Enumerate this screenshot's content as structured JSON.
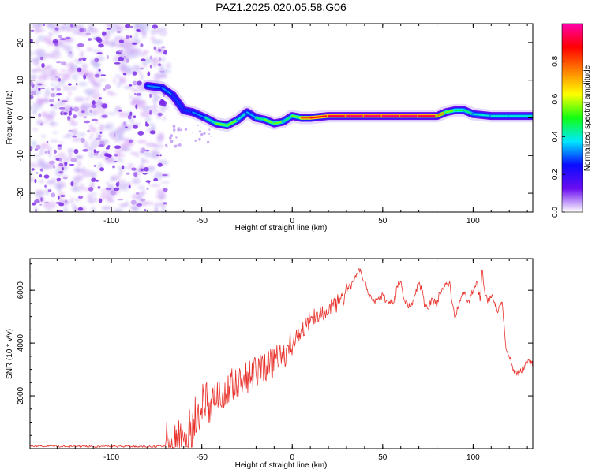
{
  "title": "PAZ1.2025.020.05.58.G06",
  "chart_data": [
    {
      "type": "heatmap",
      "title": "",
      "xlabel": "Height of straight line (km)",
      "ylabel": "Frequency (Hz)",
      "xlim": [
        -145,
        133
      ],
      "ylim": [
        -25,
        25
      ],
      "xticks": [
        "-100",
        "-50",
        "0",
        "50",
        "100"
      ],
      "yticks": [
        "20",
        "10",
        "0",
        "-10",
        "-20"
      ],
      "xtick_values": [
        -100,
        -50,
        0,
        50,
        100
      ],
      "ytick_values": [
        20,
        10,
        0,
        -10,
        -20
      ],
      "noise_region_end_km": -70,
      "ridge": {
        "name": "dominant frequency",
        "x": [
          -80,
          -72,
          -66,
          -60,
          -55,
          -48,
          -42,
          -36,
          -30,
          -25,
          -20,
          -15,
          -10,
          -5,
          0,
          5,
          10,
          20,
          30,
          40,
          50,
          60,
          70,
          80,
          85,
          90,
          95,
          100,
          110,
          120,
          133
        ],
        "y": [
          8.5,
          8.0,
          6.0,
          2.0,
          1.5,
          0.0,
          -1.5,
          -2.0,
          -0.5,
          1.5,
          0.0,
          -0.5,
          -1.5,
          -1.0,
          0.5,
          0.0,
          0.0,
          0.5,
          0.5,
          0.5,
          0.5,
          0.5,
          0.5,
          0.5,
          1.5,
          2.0,
          2.0,
          1.0,
          0.5,
          0.5,
          0.5
        ],
        "amplitude": [
          0.3,
          0.35,
          0.3,
          0.25,
          0.3,
          0.35,
          0.5,
          0.6,
          0.5,
          0.3,
          0.4,
          0.5,
          0.6,
          0.5,
          0.4,
          0.7,
          0.9,
          0.9,
          0.95,
          0.95,
          0.95,
          0.95,
          0.95,
          0.9,
          0.6,
          0.5,
          0.5,
          0.4,
          0.4,
          0.4,
          0.4
        ]
      },
      "colorbar": {
        "label": "Normalized spectral amplitude",
        "range": [
          0,
          1
        ],
        "ticks": [
          "0.0",
          "0.2",
          "0.4",
          "0.6",
          "0.8"
        ],
        "tick_values": [
          0.0,
          0.2,
          0.4,
          0.6,
          0.8
        ],
        "colors": [
          "#ffffff",
          "#6a0cf0",
          "#0a0cff",
          "#00e8ff",
          "#11ff11",
          "#ffff00",
          "#ff8000",
          "#ff0000",
          "#ff00aa"
        ]
      }
    },
    {
      "type": "line",
      "title": "",
      "xlabel": "Height of straight line (km)",
      "ylabel": "SNR (10 * v/v)",
      "xlim": [
        -145,
        133
      ],
      "ylim": [
        0,
        7200
      ],
      "xticks": [
        "-100",
        "-50",
        "0",
        "50",
        "100"
      ],
      "yticks": [
        "6000",
        "4000",
        "2000"
      ],
      "xtick_values": [
        -100,
        -50,
        0,
        50,
        100
      ],
      "ytick_values": [
        6000,
        4000,
        2000
      ],
      "series": [
        {
          "name": "SNR",
          "color": "#e8302a",
          "x": [
            -145,
            -130,
            -110,
            -90,
            -75,
            -68,
            -62,
            -58,
            -55,
            -52,
            -50,
            -47,
            -45,
            -42,
            -40,
            -37,
            -35,
            -32,
            -30,
            -27,
            -25,
            -22,
            -20,
            -17,
            -15,
            -12,
            -10,
            -7,
            -5,
            -2,
            0,
            2,
            5,
            7,
            10,
            12,
            15,
            17,
            20,
            22,
            25,
            27,
            30,
            33,
            35,
            37,
            40,
            42,
            45,
            47,
            50,
            52,
            55,
            57,
            58,
            60,
            62,
            65,
            67,
            70,
            72,
            73,
            75,
            77,
            80,
            82,
            85,
            87,
            88,
            90,
            92,
            95,
            97,
            100,
            102,
            104,
            105,
            106,
            108,
            110,
            112,
            114,
            116,
            118,
            120,
            122,
            124,
            126,
            128,
            130,
            133
          ],
          "y": [
            100,
            90,
            80,
            80,
            80,
            120,
            250,
            500,
            900,
            1500,
            1600,
            1700,
            1800,
            1900,
            2000,
            2200,
            2350,
            2500,
            2550,
            2600,
            2700,
            2800,
            2900,
            3000,
            3100,
            3200,
            3300,
            3400,
            3600,
            3800,
            4000,
            4200,
            4400,
            4700,
            4900,
            5000,
            5050,
            5100,
            5250,
            5350,
            5500,
            5550,
            6000,
            6200,
            6450,
            6800,
            6350,
            5800,
            5600,
            5600,
            5800,
            5600,
            5550,
            5700,
            6200,
            6350,
            5600,
            5400,
            5600,
            6300,
            5900,
            5450,
            5300,
            5600,
            5500,
            6000,
            6300,
            6250,
            5700,
            5000,
            5500,
            6000,
            5450,
            6000,
            6300,
            5650,
            6900,
            6000,
            5600,
            5800,
            5500,
            5200,
            5700,
            3800,
            3500,
            3100,
            2800,
            2900,
            3100,
            3300,
            3200
          ]
        }
      ]
    }
  ]
}
